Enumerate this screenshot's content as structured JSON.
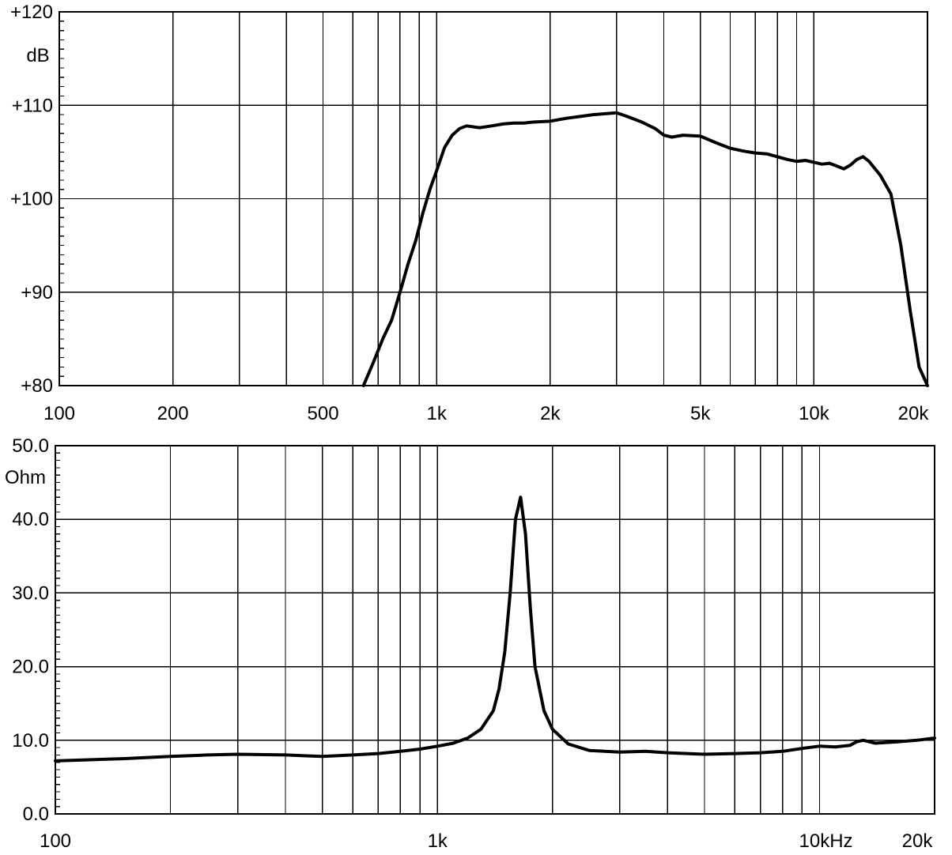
{
  "chart_data": [
    {
      "type": "line",
      "x_scale": "log",
      "xlim": [
        100,
        20000
      ],
      "ylim": [
        80,
        120
      ],
      "grid": true,
      "unit_label": "dB",
      "y_ticks": [
        {
          "value": 120,
          "label": "+120"
        },
        {
          "value": 110,
          "label": "+110"
        },
        {
          "value": 100,
          "label": "+100"
        },
        {
          "value": 90,
          "label": "+90"
        },
        {
          "value": 80,
          "label": "+80"
        }
      ],
      "x_ticks": [
        {
          "value": 100,
          "label": "100"
        },
        {
          "value": 200,
          "label": "200"
        },
        {
          "value": 500,
          "label": "500"
        },
        {
          "value": 1000,
          "label": "1k"
        },
        {
          "value": 2000,
          "label": "2k"
        },
        {
          "value": 5000,
          "label": "5k"
        },
        {
          "value": 10000,
          "label": "10k"
        },
        {
          "value": 20000,
          "label": "20k"
        }
      ],
      "series": [
        {
          "x": [
            640,
            680,
            720,
            760,
            800,
            840,
            880,
            920,
            960,
            1000,
            1050,
            1100,
            1150,
            1200,
            1300,
            1400,
            1500,
            1600,
            1700,
            1800,
            2000,
            2200,
            2400,
            2600,
            2800,
            3000,
            3200,
            3500,
            3800,
            4000,
            4200,
            4500,
            5000,
            5500,
            6000,
            6500,
            7000,
            7500,
            8000,
            8500,
            9000,
            9500,
            10000,
            10500,
            11000,
            11500,
            12000,
            12500,
            13000,
            13500,
            14000,
            15000,
            16000,
            17000,
            18000,
            19000,
            20000
          ],
          "y": [
            80,
            82.5,
            85,
            87,
            90,
            93,
            95.5,
            98.5,
            101,
            103,
            105.5,
            106.8,
            107.5,
            107.8,
            107.6,
            107.8,
            108,
            108.1,
            108.1,
            108.2,
            108.3,
            108.6,
            108.8,
            109,
            109.1,
            109.2,
            108.8,
            108.2,
            107.5,
            106.8,
            106.6,
            106.8,
            106.7,
            106,
            105.4,
            105.1,
            104.9,
            104.8,
            104.5,
            104.2,
            104,
            104.1,
            103.9,
            103.7,
            103.8,
            103.5,
            103.2,
            103.6,
            104.2,
            104.5,
            104,
            102.5,
            100.5,
            95,
            88,
            82,
            80
          ]
        }
      ]
    },
    {
      "type": "line",
      "x_scale": "log",
      "xlim": [
        100,
        20000
      ],
      "ylim": [
        0,
        50
      ],
      "grid": true,
      "unit_label": "Ohm",
      "y_ticks": [
        {
          "value": 50,
          "label": "50.0"
        },
        {
          "value": 40,
          "label": "40.0"
        },
        {
          "value": 30,
          "label": "30.0"
        },
        {
          "value": 20,
          "label": "20.0"
        },
        {
          "value": 10,
          "label": "10.0"
        },
        {
          "value": 0,
          "label": "0.0"
        }
      ],
      "x_ticks": [
        {
          "value": 100,
          "label": "100"
        },
        {
          "value": 1000,
          "label": "1k"
        },
        {
          "value": 10000,
          "label": "10kHz"
        },
        {
          "value": 20000,
          "label": "20k"
        }
      ],
      "series": [
        {
          "x": [
            100,
            150,
            200,
            250,
            300,
            400,
            500,
            600,
            700,
            800,
            900,
            1000,
            1100,
            1200,
            1300,
            1400,
            1450,
            1500,
            1550,
            1600,
            1650,
            1700,
            1750,
            1800,
            1900,
            2000,
            2200,
            2500,
            3000,
            3500,
            4000,
            5000,
            6000,
            7000,
            8000,
            9000,
            10000,
            11000,
            12000,
            12500,
            13000,
            14000,
            16000,
            18000,
            20000
          ],
          "y": [
            7.2,
            7.5,
            7.8,
            8,
            8.1,
            8,
            7.8,
            8,
            8.2,
            8.5,
            8.8,
            9.2,
            9.6,
            10.3,
            11.5,
            14,
            17,
            22,
            30,
            40,
            43,
            38,
            28,
            20,
            14,
            11.5,
            9.5,
            8.6,
            8.4,
            8.5,
            8.3,
            8.1,
            8.2,
            8.3,
            8.5,
            8.9,
            9.2,
            9.1,
            9.3,
            9.8,
            10,
            9.6,
            9.8,
            10,
            10.3
          ]
        }
      ]
    }
  ]
}
